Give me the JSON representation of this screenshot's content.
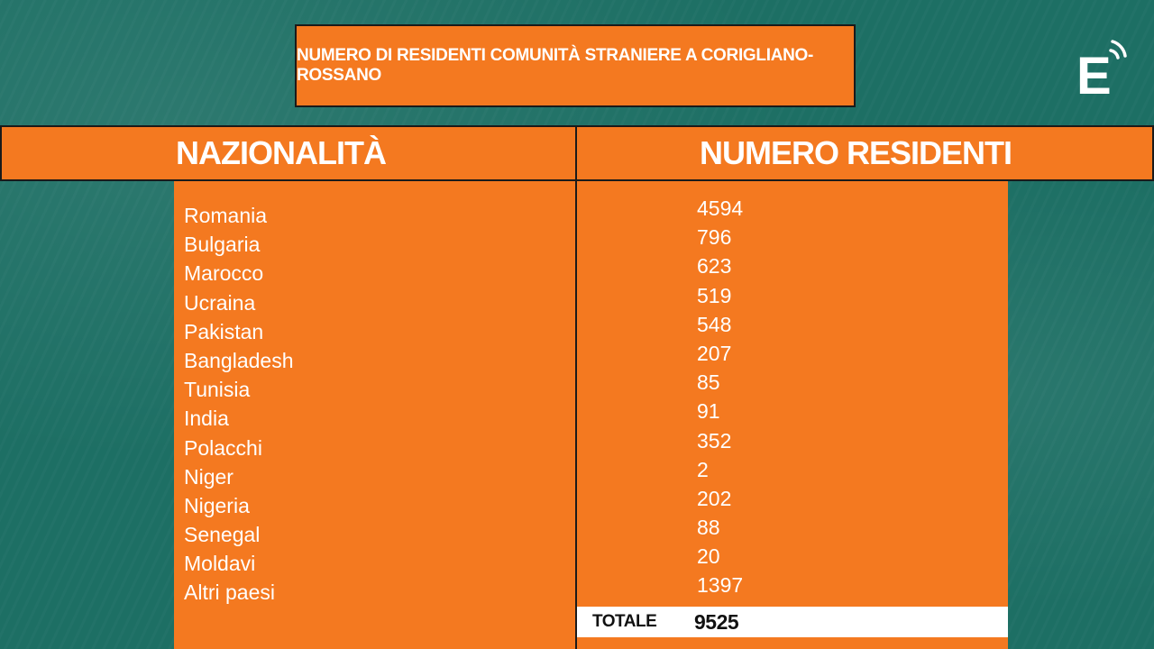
{
  "title": "NUMERO DI RESIDENTI COMUNITÀ STRANIERE A CORIGLIANO-ROSSANO",
  "logo": {
    "letter": "E",
    "icon": "broadcast-e-logo"
  },
  "table": {
    "headers": {
      "nationality": "NAZIONALITÀ",
      "residents": "NUMERO RESIDENTI"
    },
    "rows": [
      {
        "nation": "Romania",
        "residents": "4594"
      },
      {
        "nation": "Bulgaria",
        "residents": "796"
      },
      {
        "nation": "Marocco",
        "residents": "623"
      },
      {
        "nation": "Ucraina",
        "residents": "519"
      },
      {
        "nation": "Pakistan",
        "residents": "548"
      },
      {
        "nation": "Bangladesh",
        "residents": "207"
      },
      {
        "nation": "Tunisia",
        "residents": "85"
      },
      {
        "nation": "India",
        "residents": "91"
      },
      {
        "nation": "Polacchi",
        "residents": "352"
      },
      {
        "nation": "Niger",
        "residents": "2"
      },
      {
        "nation": "Nigeria",
        "residents": "202"
      },
      {
        "nation": "Senegal",
        "residents": "88"
      },
      {
        "nation": "Moldavi",
        "residents": "20"
      },
      {
        "nation": "Altri paesi",
        "residents": "1397"
      }
    ],
    "total": {
      "label": "TOTALE",
      "value": "9525"
    }
  },
  "colors": {
    "background": "#1d6f64",
    "accent": "#f47920",
    "text": "#ffffff"
  }
}
